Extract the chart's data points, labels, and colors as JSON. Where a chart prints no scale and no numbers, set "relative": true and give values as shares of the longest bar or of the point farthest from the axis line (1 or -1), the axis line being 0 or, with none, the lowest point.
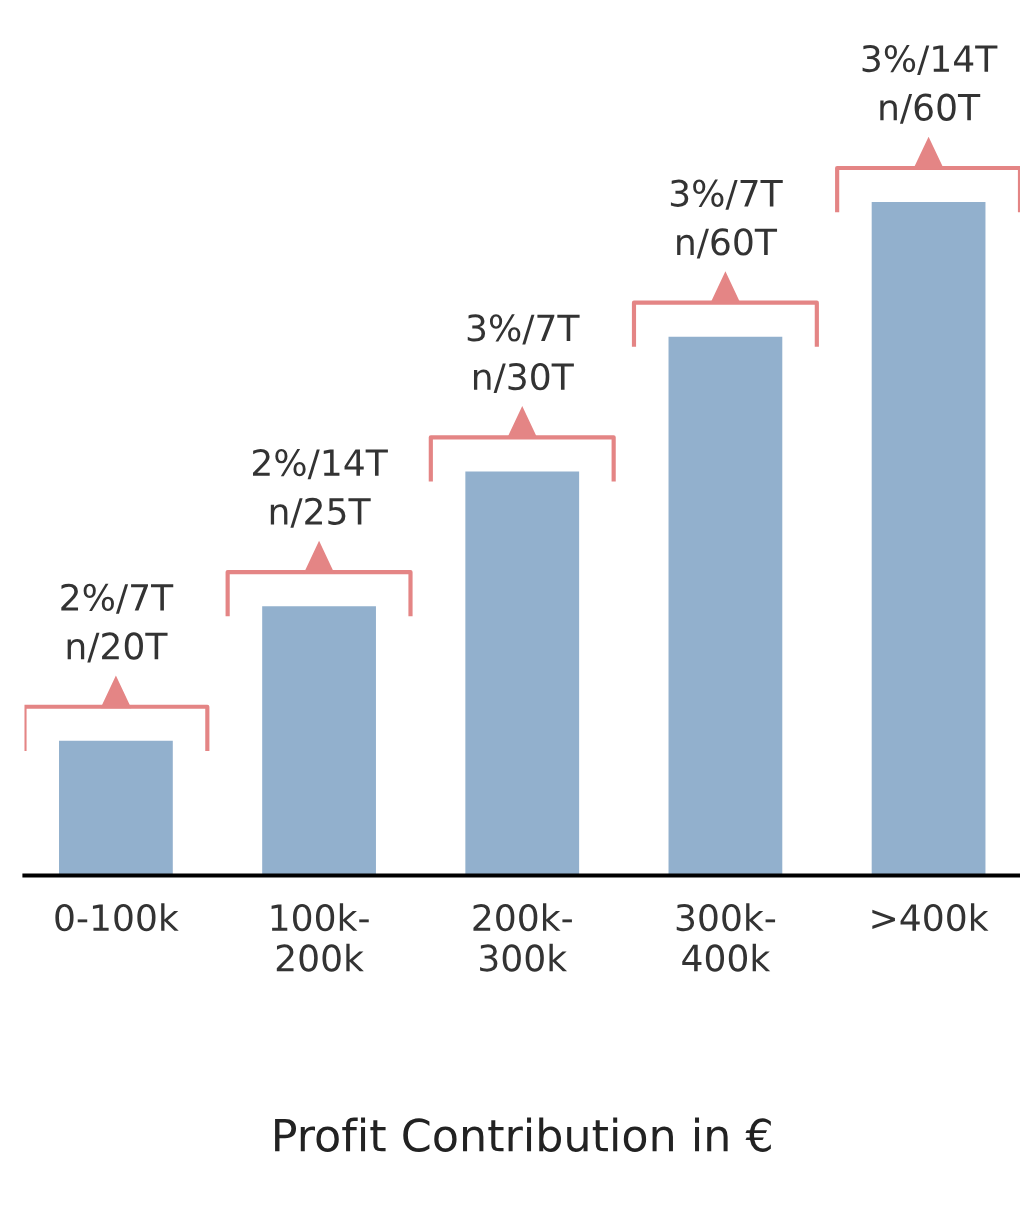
{
  "chart_data": {
    "type": "bar",
    "relative": true,
    "xlabel": "Profit Contribution in €",
    "categories": [
      "0-100k",
      "100k-\n200k",
      "200k-\n300k",
      "300k-\n400k",
      ">400k"
    ],
    "values": [
      0.2,
      0.4,
      0.6,
      0.8,
      1.0
    ],
    "color": "#92b0cd",
    "grid": false,
    "annotations": [
      {
        "text": "2%/7T\nn/20T",
        "x": "0-100k",
        "y": 0.2
      },
      {
        "text": "2%/14T\nn/25T",
        "x": "100k-\n200k",
        "y": 0.4
      },
      {
        "text": "3%/7T\nn/30T",
        "x": "200k-\n300k",
        "y": 0.6
      },
      {
        "text": "3%/7T\nn/60T",
        "x": "300k-\n400k",
        "y": 0.8
      },
      {
        "text": "3%/14T\nn/60T",
        "x": ">400k",
        "y": 1.0
      }
    ]
  }
}
